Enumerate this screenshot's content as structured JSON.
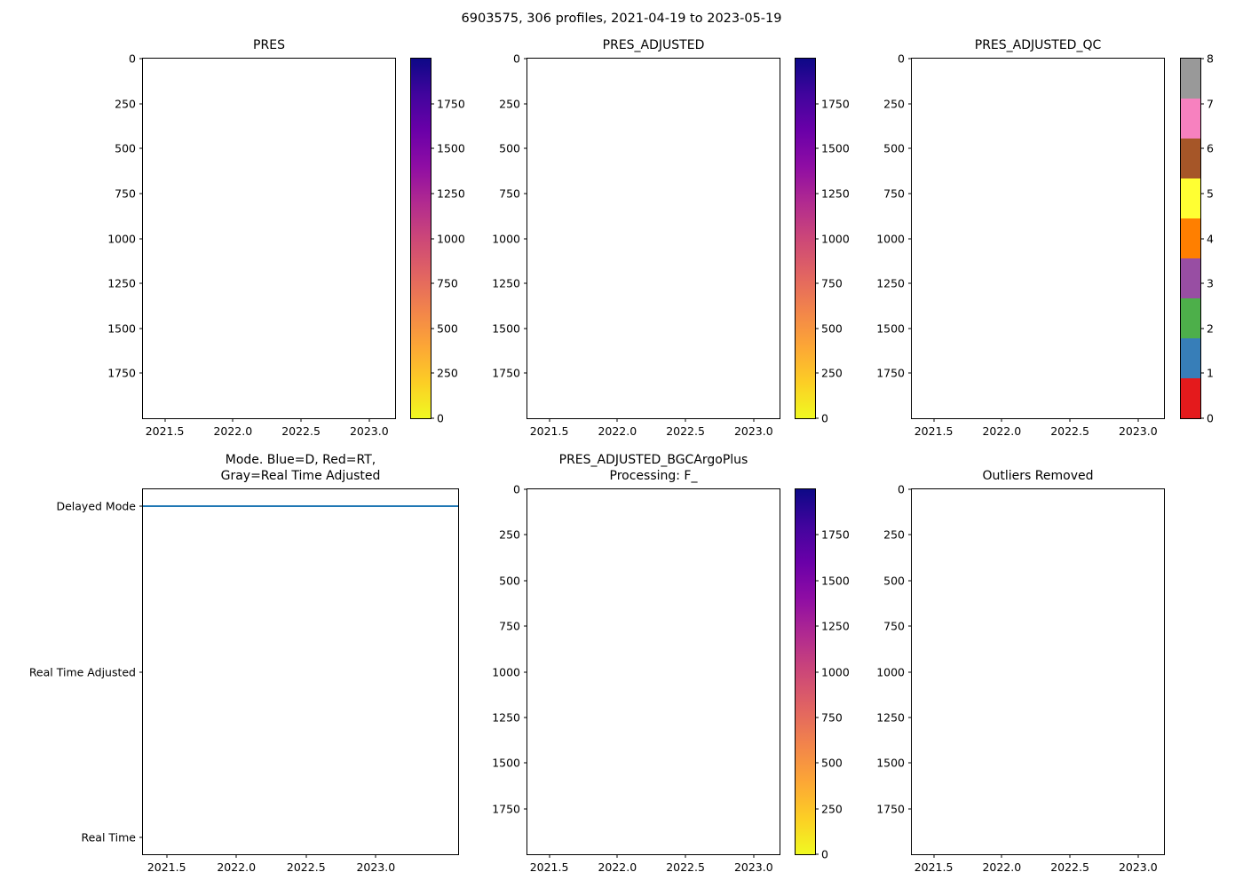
{
  "figure": {
    "suptitle": "6903575, 306 profiles, 2021-04-19 to 2023-05-19",
    "background": "#ffffff"
  },
  "chart_data": [
    {
      "id": "pres",
      "type": "scatter",
      "title": "PRES",
      "xlim": [
        2021.34,
        2023.19
      ],
      "xticks": [
        {
          "v": 2021.5,
          "label": "2021.5"
        },
        {
          "v": 2022.0,
          "label": "2022.0"
        },
        {
          "v": 2022.5,
          "label": "2022.5"
        },
        {
          "v": 2023.0,
          "label": "2023.0"
        }
      ],
      "ylim": [
        2000,
        0
      ],
      "yticks": [
        {
          "v": 0,
          "label": "0"
        },
        {
          "v": 250,
          "label": "250"
        },
        {
          "v": 500,
          "label": "500"
        },
        {
          "v": 750,
          "label": "750"
        },
        {
          "v": 1000,
          "label": "1000"
        },
        {
          "v": 1250,
          "label": "1250"
        },
        {
          "v": 1500,
          "label": "1500"
        },
        {
          "v": 1750,
          "label": "1750"
        }
      ],
      "points": [],
      "colorbar": {
        "cmap": "plasma_r",
        "vlim": [
          0,
          2000
        ],
        "ticks": [
          {
            "v": 0,
            "label": "0"
          },
          {
            "v": 250,
            "label": "250"
          },
          {
            "v": 500,
            "label": "500"
          },
          {
            "v": 750,
            "label": "750"
          },
          {
            "v": 1000,
            "label": "1000"
          },
          {
            "v": 1250,
            "label": "1250"
          },
          {
            "v": 1500,
            "label": "1500"
          },
          {
            "v": 1750,
            "label": "1750"
          }
        ],
        "gradient": [
          {
            "pos": 0.0,
            "color": "#f0f921"
          },
          {
            "pos": 0.1,
            "color": "#fcce25"
          },
          {
            "pos": 0.2,
            "color": "#fca636"
          },
          {
            "pos": 0.3,
            "color": "#f2844b"
          },
          {
            "pos": 0.4,
            "color": "#e16462"
          },
          {
            "pos": 0.5,
            "color": "#cc4778"
          },
          {
            "pos": 0.6,
            "color": "#b12a90"
          },
          {
            "pos": 0.7,
            "color": "#8f0da4"
          },
          {
            "pos": 0.8,
            "color": "#6a00a8"
          },
          {
            "pos": 0.9,
            "color": "#41049d"
          },
          {
            "pos": 1.0,
            "color": "#0d0887"
          }
        ]
      }
    },
    {
      "id": "pres_adjusted",
      "type": "scatter",
      "title": "PRES_ADJUSTED",
      "xlim": [
        2021.34,
        2023.19
      ],
      "xticks": [
        {
          "v": 2021.5,
          "label": "2021.5"
        },
        {
          "v": 2022.0,
          "label": "2022.0"
        },
        {
          "v": 2022.5,
          "label": "2022.5"
        },
        {
          "v": 2023.0,
          "label": "2023.0"
        }
      ],
      "ylim": [
        2000,
        0
      ],
      "yticks": [
        {
          "v": 0,
          "label": "0"
        },
        {
          "v": 250,
          "label": "250"
        },
        {
          "v": 500,
          "label": "500"
        },
        {
          "v": 750,
          "label": "750"
        },
        {
          "v": 1000,
          "label": "1000"
        },
        {
          "v": 1250,
          "label": "1250"
        },
        {
          "v": 1500,
          "label": "1500"
        },
        {
          "v": 1750,
          "label": "1750"
        }
      ],
      "points": [],
      "colorbar": {
        "cmap": "plasma_r",
        "vlim": [
          0,
          2000
        ],
        "ticks": [
          {
            "v": 0,
            "label": "0"
          },
          {
            "v": 250,
            "label": "250"
          },
          {
            "v": 500,
            "label": "500"
          },
          {
            "v": 750,
            "label": "750"
          },
          {
            "v": 1000,
            "label": "1000"
          },
          {
            "v": 1250,
            "label": "1250"
          },
          {
            "v": 1500,
            "label": "1500"
          },
          {
            "v": 1750,
            "label": "1750"
          }
        ],
        "gradient": [
          {
            "pos": 0.0,
            "color": "#f0f921"
          },
          {
            "pos": 0.1,
            "color": "#fcce25"
          },
          {
            "pos": 0.2,
            "color": "#fca636"
          },
          {
            "pos": 0.3,
            "color": "#f2844b"
          },
          {
            "pos": 0.4,
            "color": "#e16462"
          },
          {
            "pos": 0.5,
            "color": "#cc4778"
          },
          {
            "pos": 0.6,
            "color": "#b12a90"
          },
          {
            "pos": 0.7,
            "color": "#8f0da4"
          },
          {
            "pos": 0.8,
            "color": "#6a00a8"
          },
          {
            "pos": 0.9,
            "color": "#41049d"
          },
          {
            "pos": 1.0,
            "color": "#0d0887"
          }
        ]
      }
    },
    {
      "id": "pres_adjusted_qc",
      "type": "scatter",
      "title": "PRES_ADJUSTED_QC",
      "xlim": [
        2021.34,
        2023.19
      ],
      "xticks": [
        {
          "v": 2021.5,
          "label": "2021.5"
        },
        {
          "v": 2022.0,
          "label": "2022.0"
        },
        {
          "v": 2022.5,
          "label": "2022.5"
        },
        {
          "v": 2023.0,
          "label": "2023.0"
        }
      ],
      "ylim": [
        2000,
        0
      ],
      "yticks": [
        {
          "v": 0,
          "label": "0"
        },
        {
          "v": 250,
          "label": "250"
        },
        {
          "v": 500,
          "label": "500"
        },
        {
          "v": 750,
          "label": "750"
        },
        {
          "v": 1000,
          "label": "1000"
        },
        {
          "v": 1250,
          "label": "1250"
        },
        {
          "v": 1500,
          "label": "1500"
        },
        {
          "v": 1750,
          "label": "1750"
        }
      ],
      "points": [],
      "colorbar": {
        "cmap": "Set1-discrete",
        "vlim": [
          0,
          8
        ],
        "ticks": [
          {
            "v": 0,
            "label": "0"
          },
          {
            "v": 1,
            "label": "1"
          },
          {
            "v": 2,
            "label": "2"
          },
          {
            "v": 3,
            "label": "3"
          },
          {
            "v": 4,
            "label": "4"
          },
          {
            "v": 5,
            "label": "5"
          },
          {
            "v": 6,
            "label": "6"
          },
          {
            "v": 7,
            "label": "7"
          },
          {
            "v": 8,
            "label": "8"
          }
        ],
        "segments": [
          "#e41a1c",
          "#377eb8",
          "#4daf4a",
          "#984ea3",
          "#ff7f00",
          "#ffff33",
          "#a65628",
          "#f781bf",
          "#999999"
        ]
      }
    },
    {
      "id": "mode",
      "type": "line",
      "title": "Mode. Blue=D, Red=RT,\nGray=Real Time Adjusted",
      "xlim": [
        2021.33,
        2023.59
      ],
      "xticks": [
        {
          "v": 2021.5,
          "label": "2021.5"
        },
        {
          "v": 2022.0,
          "label": "2022.0"
        },
        {
          "v": 2022.5,
          "label": "2022.5"
        },
        {
          "v": 2023.0,
          "label": "2023.0"
        }
      ],
      "ylim": [
        -0.1,
        2.1
      ],
      "yticks": [
        {
          "v": 2,
          "label": "Delayed Mode"
        },
        {
          "v": 1,
          "label": "Real Time Adjusted"
        },
        {
          "v": 0,
          "label": "Real Time"
        }
      ],
      "series": [
        {
          "name": "mode-delayed",
          "type": "hline",
          "y": 2,
          "color": "#1f77b4"
        }
      ]
    },
    {
      "id": "pres_adjusted_bgcargoplus",
      "type": "scatter",
      "title": "PRES_ADJUSTED_BGCArgoPlus\nProcessing: F_",
      "xlim": [
        2021.34,
        2023.19
      ],
      "xticks": [
        {
          "v": 2021.5,
          "label": "2021.5"
        },
        {
          "v": 2022.0,
          "label": "2022.0"
        },
        {
          "v": 2022.5,
          "label": "2022.5"
        },
        {
          "v": 2023.0,
          "label": "2023.0"
        }
      ],
      "ylim": [
        2000,
        0
      ],
      "yticks": [
        {
          "v": 0,
          "label": "0"
        },
        {
          "v": 250,
          "label": "250"
        },
        {
          "v": 500,
          "label": "500"
        },
        {
          "v": 750,
          "label": "750"
        },
        {
          "v": 1000,
          "label": "1000"
        },
        {
          "v": 1250,
          "label": "1250"
        },
        {
          "v": 1500,
          "label": "1500"
        },
        {
          "v": 1750,
          "label": "1750"
        }
      ],
      "points": [],
      "colorbar": {
        "cmap": "plasma_r",
        "vlim": [
          0,
          2000
        ],
        "ticks": [
          {
            "v": 0,
            "label": "0"
          },
          {
            "v": 250,
            "label": "250"
          },
          {
            "v": 500,
            "label": "500"
          },
          {
            "v": 750,
            "label": "750"
          },
          {
            "v": 1000,
            "label": "1000"
          },
          {
            "v": 1250,
            "label": "1250"
          },
          {
            "v": 1500,
            "label": "1500"
          },
          {
            "v": 1750,
            "label": "1750"
          }
        ],
        "gradient": [
          {
            "pos": 0.0,
            "color": "#f0f921"
          },
          {
            "pos": 0.1,
            "color": "#fcce25"
          },
          {
            "pos": 0.2,
            "color": "#fca636"
          },
          {
            "pos": 0.3,
            "color": "#f2844b"
          },
          {
            "pos": 0.4,
            "color": "#e16462"
          },
          {
            "pos": 0.5,
            "color": "#cc4778"
          },
          {
            "pos": 0.6,
            "color": "#b12a90"
          },
          {
            "pos": 0.7,
            "color": "#8f0da4"
          },
          {
            "pos": 0.8,
            "color": "#6a00a8"
          },
          {
            "pos": 0.9,
            "color": "#41049d"
          },
          {
            "pos": 1.0,
            "color": "#0d0887"
          }
        ]
      }
    },
    {
      "id": "outliers_removed",
      "type": "scatter",
      "title": "Outliers Removed",
      "xlim": [
        2021.34,
        2023.19
      ],
      "xticks": [
        {
          "v": 2021.5,
          "label": "2021.5"
        },
        {
          "v": 2022.0,
          "label": "2022.0"
        },
        {
          "v": 2022.5,
          "label": "2022.5"
        },
        {
          "v": 2023.0,
          "label": "2023.0"
        }
      ],
      "ylim": [
        2000,
        0
      ],
      "yticks": [
        {
          "v": 0,
          "label": "0"
        },
        {
          "v": 250,
          "label": "250"
        },
        {
          "v": 500,
          "label": "500"
        },
        {
          "v": 750,
          "label": "750"
        },
        {
          "v": 1000,
          "label": "1000"
        },
        {
          "v": 1250,
          "label": "1250"
        },
        {
          "v": 1500,
          "label": "1500"
        },
        {
          "v": 1750,
          "label": "1750"
        }
      ],
      "points": []
    }
  ]
}
